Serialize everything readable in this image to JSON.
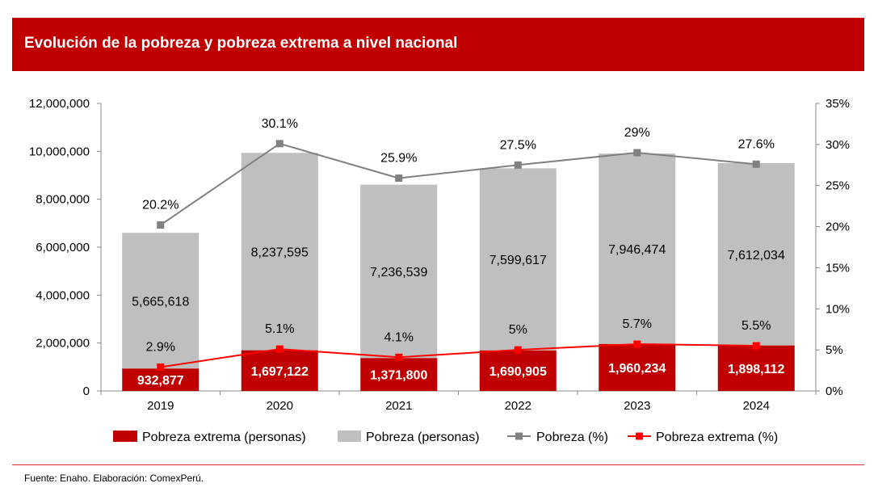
{
  "header": {
    "title": "Evolución de la pobreza y pobreza extrema a nivel nacional"
  },
  "footer": {
    "source": "Fuente: Enaho. Elaboración: ComexPerú."
  },
  "colors": {
    "brand": "#C00000",
    "extreme_bar": "#C00000",
    "poverty_bar": "#BFBFBF",
    "poverty_line": "#808080",
    "extreme_line": "#FF0000"
  },
  "chart_data": {
    "type": "bar",
    "stacked": true,
    "title": "Evolución de la pobreza y pobreza extrema a nivel nacional",
    "categories": [
      "2019",
      "2020",
      "2021",
      "2022",
      "2023",
      "2024"
    ],
    "series": [
      {
        "name": "Pobreza extrema (personas)",
        "type": "bar",
        "axis": "left",
        "values": [
          932877,
          1697122,
          1371800,
          1690905,
          1960234,
          1898112
        ],
        "labels": [
          "932,877",
          "1,697,122",
          "1,371,800",
          "1,690,905",
          "1,960,234",
          "1,898,112"
        ]
      },
      {
        "name": "Pobreza (personas)",
        "type": "bar",
        "axis": "left",
        "values": [
          5665618,
          8237595,
          7236539,
          7599617,
          7946474,
          7612034
        ],
        "labels": [
          "5,665,618",
          "8,237,595",
          "7,236,539",
          "7,599,617",
          "7,946,474",
          "7,612,034"
        ]
      },
      {
        "name": "Pobreza (%)",
        "type": "line",
        "axis": "right",
        "values": [
          20.2,
          30.1,
          25.9,
          27.5,
          29,
          27.6
        ],
        "labels": [
          "20.2%",
          "30.1%",
          "25.9%",
          "27.5%",
          "29%",
          "27.6%"
        ]
      },
      {
        "name": "Pobreza extrema (%)",
        "type": "line",
        "axis": "right",
        "values": [
          2.9,
          5.1,
          4.1,
          5,
          5.7,
          5.5
        ],
        "labels": [
          "2.9%",
          "5.1%",
          "4.1%",
          "5%",
          "5.7%",
          "5.5%"
        ]
      }
    ],
    "left_axis": {
      "ylim": [
        0,
        12000000
      ],
      "ticks": [
        "0",
        "2,000,000",
        "4,000,000",
        "6,000,000",
        "8,000,000",
        "10,000,000",
        "12,000,000"
      ]
    },
    "right_axis": {
      "ylim": [
        0,
        35
      ],
      "ticks": [
        "0%",
        "5%",
        "10%",
        "15%",
        "20%",
        "25%",
        "30%",
        "35%"
      ]
    },
    "grid": false,
    "legend_position": "bottom"
  }
}
